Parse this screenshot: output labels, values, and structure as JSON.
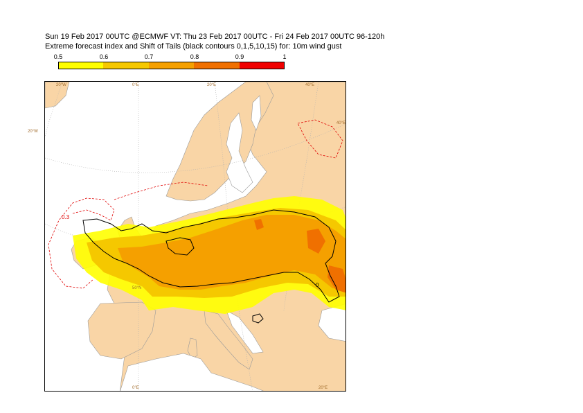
{
  "title": {
    "line1": "Sun 19 Feb 2017 00UTC @ECMWF VT: Thu 23 Feb 2017 00UTC - Fri 24 Feb 2017 00UTC  96-120h",
    "line2": "Extreme forecast index and Shift of Tails (black contours 0,1,5,10,15) for: 10m wind gust"
  },
  "legend": {
    "ticks": [
      "0.5",
      "0.6",
      "0.7",
      "0.8",
      "0.9",
      "1"
    ],
    "colors": [
      "#ffff00",
      "#f5c800",
      "#f5a000",
      "#f07000",
      "#f00000"
    ]
  },
  "map": {
    "land_color": "#f9d5a6",
    "sea_color": "#ffffff",
    "labels": {
      "lon_20w_top": "20°W",
      "lon_0e_top": "0°E",
      "lon_20e_top": "20°E",
      "lon_40e_top": "40°E",
      "lon_40e_right": "40°E",
      "lon_20w_left": "20°W",
      "lat_50n": "50°N",
      "lon_0e_bottom": "0°E",
      "lon_20e_bottom": "20°E"
    },
    "contour_labels": {
      "red_03": "0.3",
      "black_0": "0"
    }
  }
}
